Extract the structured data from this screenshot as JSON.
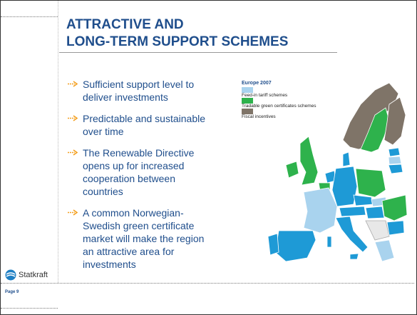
{
  "title": [
    "ATTRACTIVE AND",
    "LONG-TERM SUPPORT SCHEMES"
  ],
  "bullets": [
    "Sufficient support level to deliver investments",
    "Predictable and sustainable over time",
    "The Renewable Directive opens up for increased cooperation between countries",
    "A common Norwegian-Swedish green certificate market will make the region an attractive area for investments"
  ],
  "map": {
    "legend_title": "Europe 2007",
    "legend": [
      {
        "label": "Feed-in tariff schemes",
        "color": "#a9d3ee"
      },
      {
        "label": "Tradable green certificates schemes",
        "color": "#2eb24c"
      },
      {
        "label": "Fiscal incentives",
        "color": "#7f7468"
      }
    ]
  },
  "logo": "Statkraft",
  "footer": "Page 9"
}
